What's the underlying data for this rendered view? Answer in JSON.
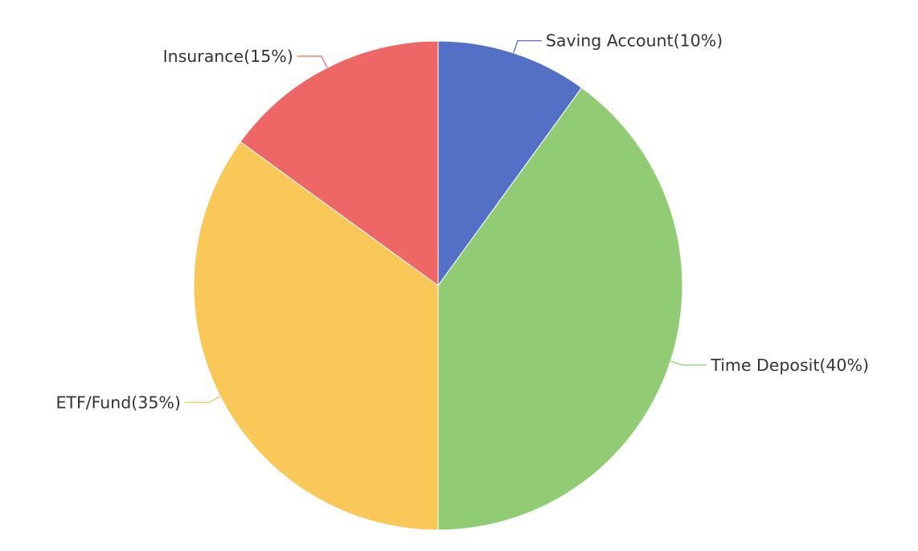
{
  "chart_data": {
    "type": "pie",
    "title": "",
    "series": [
      {
        "slices": [
          {
            "label": "Saving Account",
            "value": 10,
            "display": "Saving Account(10%)",
            "color": "#5470c6"
          },
          {
            "label": "Time Deposit",
            "value": 40,
            "display": "Time Deposit(40%)",
            "color": "#91cc75"
          },
          {
            "label": "ETF/Fund",
            "value": 35,
            "display": "ETF/Fund(35%)",
            "color": "#fac858"
          },
          {
            "label": "Insurance",
            "value": 15,
            "display": "Insurance(15%)",
            "color": "#ee6666"
          }
        ]
      }
    ],
    "legend": "none",
    "labels": "outside-with-leader-lines"
  }
}
